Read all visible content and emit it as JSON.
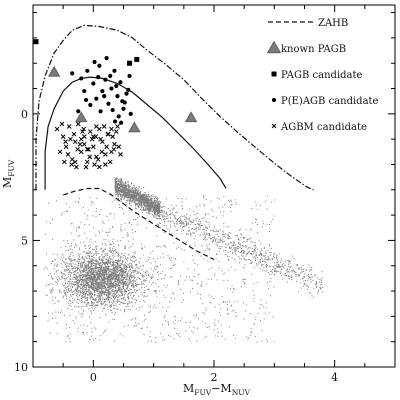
{
  "chart_data": {
    "type": "scatter",
    "title": "",
    "xlabel": {
      "main": "M",
      "sub1": "FUV",
      "sep": "−M",
      "sub2": "NUV"
    },
    "ylabel": {
      "main": "M",
      "sub": "FUV"
    },
    "xlim": [
      -1.0,
      5.0
    ],
    "ylim": [
      10.0,
      -4.3
    ],
    "y_inverted": true,
    "x_ticks": [
      0,
      2,
      4
    ],
    "x_tick_labels": [
      "0",
      "2",
      "4"
    ],
    "y_ticks": [
      0,
      5,
      10
    ],
    "y_tick_labels": [
      "0",
      "5",
      "10"
    ],
    "grid": false,
    "legend_position": "top-right",
    "legend": [
      {
        "symbol": "dashed-line",
        "label": "ZAHB"
      },
      {
        "symbol": "triangle",
        "label": "known PAGB"
      },
      {
        "symbol": "square",
        "label": "PAGB candidate"
      },
      {
        "symbol": "circle",
        "label": "P(E)AGB candidate"
      },
      {
        "symbol": "cross",
        "label": "AGBM candidate"
      }
    ],
    "curves": [
      {
        "name": "ZAHB",
        "style": "dashed",
        "x": [
          -0.5,
          -0.3,
          -0.1,
          0.1,
          0.3,
          0.5,
          0.7,
          0.9,
          1.1,
          1.3,
          1.5,
          1.7,
          2.0
        ],
        "y": [
          3.2,
          3.05,
          2.95,
          2.95,
          3.2,
          3.55,
          3.9,
          4.2,
          4.5,
          4.8,
          5.1,
          5.4,
          5.75
        ]
      },
      {
        "name": "outer track",
        "style": "dash-dot",
        "x": [
          -0.95,
          -0.95,
          -0.9,
          -0.8,
          -0.65,
          -0.5,
          -0.35,
          -0.15,
          0.1,
          0.4,
          0.65,
          0.9,
          1.2,
          1.5,
          1.8,
          2.1,
          2.4,
          2.7,
          3.0,
          3.3,
          3.55,
          3.65
        ],
        "y": [
          3.0,
          1.0,
          -0.5,
          -1.5,
          -2.4,
          -2.9,
          -3.3,
          -3.5,
          -3.45,
          -3.3,
          -3.0,
          -2.5,
          -1.95,
          -1.35,
          -0.6,
          0.1,
          0.75,
          1.35,
          1.95,
          2.5,
          2.9,
          3.0
        ]
      },
      {
        "name": "inner track",
        "style": "solid",
        "x": [
          -0.8,
          -0.8,
          -0.75,
          -0.65,
          -0.5,
          -0.35,
          -0.2,
          -0.05,
          0.15,
          0.4,
          0.65,
          0.9,
          1.15,
          1.4,
          1.65,
          1.9,
          2.1,
          2.2
        ],
        "y": [
          3.0,
          1.5,
          0.5,
          -0.2,
          -0.9,
          -1.25,
          -1.4,
          -1.45,
          -1.4,
          -1.2,
          -0.85,
          -0.35,
          0.15,
          0.75,
          1.35,
          2.0,
          2.55,
          2.95
        ]
      }
    ],
    "series": [
      {
        "name": "known PAGB",
        "marker": "triangle",
        "x": [
          -0.65,
          -0.2,
          0.68,
          1.62
        ],
        "y": [
          -1.65,
          0.15,
          0.55,
          0.15
        ]
      },
      {
        "name": "PAGB candidate",
        "marker": "square",
        "x": [
          -0.95,
          0.6,
          0.72
        ],
        "y": [
          -2.85,
          -2.0,
          -2.15
        ]
      },
      {
        "name": "P(E)AGB candidate",
        "marker": "circle",
        "x": [
          -0.35,
          -0.2,
          -0.15,
          -0.1,
          0.0,
          0.05,
          0.1,
          0.15,
          0.2,
          0.25,
          0.3,
          0.35,
          0.4,
          0.45,
          0.5,
          0.55,
          0.6,
          -0.25,
          -0.05,
          0.12,
          0.28,
          0.38,
          0.48,
          0.58,
          -0.12,
          0.08,
          0.18,
          0.32,
          0.42,
          0.52,
          0.62,
          0.22,
          0.02,
          0.36,
          0.46
        ],
        "y": [
          -1.6,
          -1.4,
          -0.9,
          -1.7,
          -1.2,
          -0.6,
          -1.9,
          -0.9,
          -1.35,
          -0.4,
          -1.0,
          -1.7,
          -0.7,
          -1.25,
          -0.2,
          -0.8,
          -1.5,
          -0.1,
          -0.35,
          -0.1,
          -1.5,
          -1.1,
          -0.5,
          -0.95,
          -0.55,
          -1.45,
          -0.7,
          -0.15,
          0.1,
          -0.45,
          0.0,
          -2.2,
          -2.05,
          0.3,
          0.35
        ]
      },
      {
        "name": "AGBM candidate",
        "marker": "cross",
        "x": [
          -0.6,
          -0.5,
          -0.45,
          -0.4,
          -0.35,
          -0.3,
          -0.25,
          -0.2,
          -0.15,
          -0.1,
          -0.05,
          0.0,
          0.05,
          0.1,
          0.15,
          0.2,
          0.25,
          0.3,
          0.35,
          0.4,
          0.45,
          -0.55,
          -0.48,
          -0.38,
          -0.28,
          -0.18,
          -0.08,
          0.02,
          0.12,
          0.22,
          0.32,
          0.42,
          -0.52,
          -0.42,
          -0.32,
          -0.22,
          -0.12,
          -0.02,
          0.08,
          0.18,
          0.28,
          0.38,
          -0.46,
          -0.36,
          -0.26,
          -0.16,
          -0.06,
          0.04,
          0.14,
          0.24,
          0.34,
          -0.3,
          -0.2,
          -0.1,
          0.0,
          0.1,
          0.2,
          0.3,
          -0.15,
          0.05
        ],
        "y": [
          0.6,
          0.9,
          1.3,
          0.5,
          1.8,
          1.1,
          0.4,
          1.5,
          0.9,
          1.9,
          0.7,
          1.3,
          1.7,
          0.6,
          1.1,
          2.0,
          0.8,
          1.5,
          1.2,
          0.5,
          1.6,
          1.5,
          1.9,
          1.0,
          2.1,
          0.7,
          1.4,
          2.0,
          1.0,
          1.3,
          0.9,
          1.3,
          0.4,
          1.6,
          0.8,
          1.2,
          2.1,
          1.0,
          1.8,
          0.5,
          1.9,
          0.7,
          1.1,
          2.0,
          1.4,
          0.6,
          1.7,
          0.9,
          1.5,
          0.8,
          1.4,
          1.9,
          1.0,
          1.4,
          0.9,
          2.1,
          1.6,
          0.6,
          1.2,
          0.5
        ]
      }
    ],
    "background_populations": [
      {
        "name": "sequence",
        "density": "high",
        "x_range": [
          0.3,
          1.0
        ],
        "y_range": [
          2.8,
          4.0
        ]
      },
      {
        "name": "sequence tail",
        "density": "medium",
        "x_range": [
          1.0,
          3.8
        ],
        "y_range": [
          4.0,
          7.0
        ]
      },
      {
        "name": "red clump",
        "density": "very high",
        "center": [
          0.1,
          6.5
        ],
        "spread": [
          0.5,
          0.8
        ]
      },
      {
        "name": "diffuse field",
        "density": "low",
        "x_range": [
          -0.8,
          3.0
        ],
        "y_range": [
          3.0,
          9.0
        ]
      }
    ]
  }
}
